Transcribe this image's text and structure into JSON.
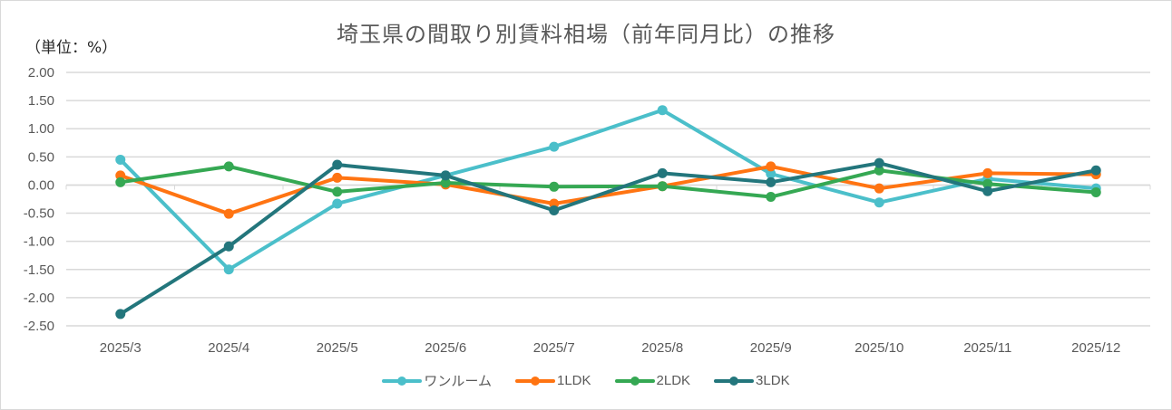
{
  "chart_data": {
    "type": "line",
    "title": "埼玉県の間取り別賃料相場（前年同月比）の推移",
    "unit_label": "（単位：%）",
    "xlabel": "",
    "ylabel": "",
    "categories": [
      "2025/3",
      "2025/4",
      "2025/5",
      "2025/6",
      "2025/7",
      "2025/8",
      "2025/9",
      "2025/10",
      "2025/11",
      "2025/12"
    ],
    "ylim": [
      -2.5,
      2.0
    ],
    "yticks": [
      2.0,
      1.5,
      1.0,
      0.5,
      0.0,
      -0.5,
      -1.0,
      -1.5,
      -2.0,
      -2.5
    ],
    "ytick_labels": [
      "2.00",
      "1.50",
      "1.00",
      "0.50",
      "0.00",
      "-0.50",
      "-1.00",
      "-1.50",
      "-2.00",
      "-2.50"
    ],
    "grid": true,
    "legend_position": "bottom",
    "series": [
      {
        "name": "ワンルーム",
        "color": "#4bbfca",
        "values": [
          0.45,
          -1.5,
          -0.33,
          0.17,
          0.68,
          1.33,
          0.2,
          -0.31,
          0.11,
          -0.06
        ]
      },
      {
        "name": "1LDK",
        "color": "#ff7412",
        "values": [
          0.17,
          -0.51,
          0.13,
          0.01,
          -0.33,
          -0.02,
          0.33,
          -0.06,
          0.21,
          0.19
        ]
      },
      {
        "name": "2LDK",
        "color": "#35a853",
        "values": [
          0.05,
          0.33,
          -0.12,
          0.04,
          -0.03,
          -0.02,
          -0.21,
          0.26,
          0.02,
          -0.13
        ]
      },
      {
        "name": "3LDK",
        "color": "#23767c",
        "values": [
          -2.29,
          -1.09,
          0.36,
          0.17,
          -0.45,
          0.21,
          0.05,
          0.39,
          -0.11,
          0.26
        ]
      }
    ]
  }
}
